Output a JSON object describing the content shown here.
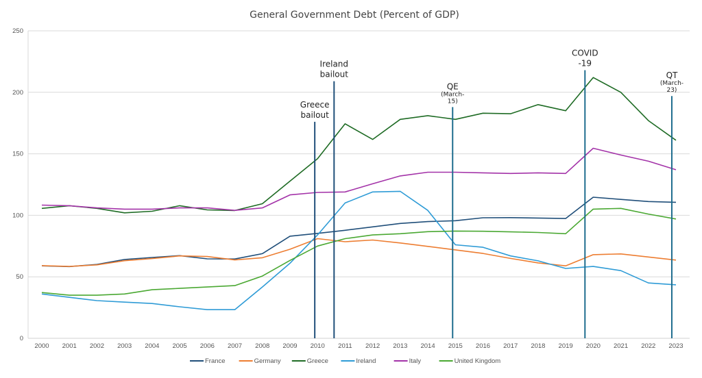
{
  "chart_data": {
    "type": "line",
    "title": "General Government Debt (Percent of GDP)",
    "xlabel": "",
    "ylabel": "",
    "ylim": [
      0,
      250
    ],
    "yticks": [
      0,
      50,
      100,
      150,
      200,
      250
    ],
    "grid": true,
    "legend_position": "bottom",
    "x": [
      "2000",
      "2001",
      "2002",
      "2003",
      "2004",
      "2005",
      "2006",
      "2007",
      "2008",
      "2009",
      "2010",
      "2011",
      "2012",
      "2013",
      "2014",
      "2015",
      "2016",
      "2017",
      "2018",
      "2019",
      "2020",
      "2021",
      "2022",
      "2023"
    ],
    "series": [
      {
        "name": "France",
        "color": "#1f4e79",
        "values": [
          58.9,
          58.3,
          60.0,
          64.1,
          65.7,
          67.2,
          64.6,
          64.5,
          68.8,
          83.0,
          85.3,
          87.8,
          90.6,
          93.4,
          94.9,
          95.6,
          98.0,
          98.1,
          97.8,
          97.4,
          114.7,
          112.9,
          111.2,
          110.6
        ]
      },
      {
        "name": "Germany",
        "color": "#ed7d31",
        "values": [
          59.1,
          58.4,
          59.7,
          63.1,
          64.8,
          67.0,
          66.5,
          63.7,
          65.5,
          72.4,
          81.0,
          78.5,
          79.9,
          77.5,
          74.7,
          71.9,
          69.0,
          64.9,
          61.3,
          58.9,
          68.0,
          68.6,
          66.1,
          63.6
        ]
      },
      {
        "name": "Greece",
        "color": "#1e6b24",
        "values": [
          105.6,
          107.8,
          105.6,
          102.0,
          103.3,
          107.8,
          104.4,
          103.9,
          109.4,
          127.8,
          146.0,
          174.4,
          161.7,
          178.0,
          181.0,
          178.0,
          183.0,
          182.6,
          190.0,
          185.0,
          212.0,
          200.0,
          177.0,
          161.0
        ]
      },
      {
        "name": "Ireland",
        "color": "#2e9bd6",
        "values": [
          36.0,
          33.3,
          30.6,
          29.4,
          28.3,
          25.6,
          23.3,
          23.3,
          41.7,
          61.0,
          84.0,
          110.0,
          119.0,
          119.5,
          104.0,
          76.0,
          74.0,
          67.0,
          63.0,
          56.8,
          58.4,
          55.0,
          45.0,
          43.5
        ]
      },
      {
        "name": "Italy",
        "color": "#a332a8",
        "values": [
          108.3,
          107.8,
          106.0,
          105.0,
          105.0,
          106.0,
          106.0,
          104.0,
          106.0,
          116.6,
          118.6,
          119.0,
          125.6,
          132.0,
          135.0,
          135.0,
          134.5,
          134.0,
          134.5,
          134.0,
          154.5,
          149.0,
          144.0,
          137.0
        ]
      },
      {
        "name": "United Kingdom",
        "color": "#4aa832",
        "values": [
          37.2,
          35.0,
          35.0,
          36.0,
          39.5,
          40.6,
          41.7,
          42.8,
          50.6,
          63.3,
          75.0,
          81.0,
          84.0,
          85.0,
          86.7,
          87.2,
          87.0,
          86.5,
          86.0,
          85.0,
          105.0,
          105.6,
          101.0,
          97.0
        ]
      }
    ],
    "annotations": [
      {
        "label_lines": [
          "Greece",
          "bailout"
        ],
        "x": 2009.9,
        "top_value": 176,
        "font": "large",
        "color": "#1f4e79"
      },
      {
        "label_lines": [
          "Ireland",
          "bailout"
        ],
        "x": 2010.6,
        "top_value": 209,
        "font": "large",
        "color": "#1f4e79"
      },
      {
        "label_lines": [
          "QE",
          "(March-",
          "15)"
        ],
        "x": 2014.9,
        "top_value": 188,
        "font": "mixed",
        "color": "#1f6d8e"
      },
      {
        "label_lines": [
          "COVID",
          "-19"
        ],
        "x": 2019.7,
        "top_value": 218,
        "font": "large",
        "color": "#1f6d8e"
      },
      {
        "label_lines": [
          "QT",
          "(March-",
          "23)"
        ],
        "x": 2022.85,
        "top_value": 197,
        "font": "mixed",
        "color": "#1f6d8e"
      }
    ],
    "gridline_color": "#d9d9d9"
  }
}
